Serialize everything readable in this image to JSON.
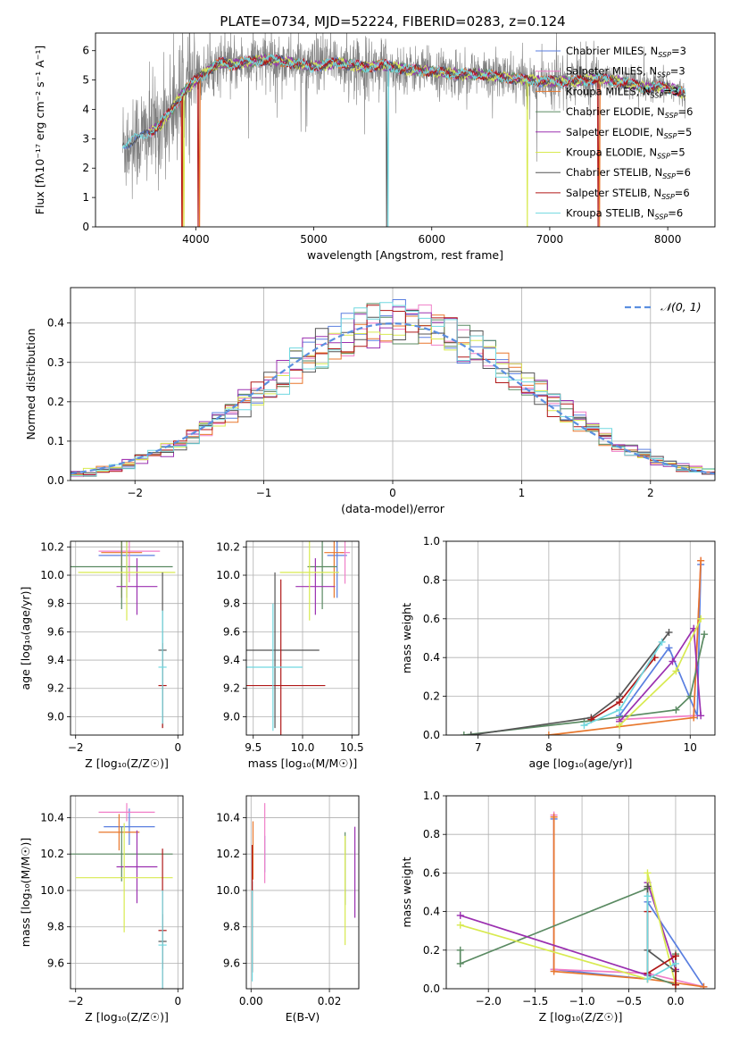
{
  "figure": {
    "title": "PLATE=0734, MJD=52224, FIBERID=0283, z=0.124"
  },
  "colors": {
    "chabrier_miles": "#5a7fe0",
    "salpeter_miles": "#f07fc8",
    "kroupa_miles": "#e8772c",
    "chabrier_elodie": "#5a8a62",
    "salpeter_elodie": "#9b30b0",
    "kroupa_elodie": "#d8ea50",
    "chabrier_stelib": "#555555",
    "salpeter_stelib": "#b01818",
    "kroupa_stelib": "#70d8e0",
    "data": "#808080",
    "normal": "#5b8fe0"
  },
  "models": [
    {
      "key": "chabrier_miles",
      "name": "Chabrier MILES, N",
      "n": "3"
    },
    {
      "key": "salpeter_miles",
      "name": "Salpeter MILES, N",
      "n": "3"
    },
    {
      "key": "kroupa_miles",
      "name": "Kroupa MILES, N",
      "n": "3"
    },
    {
      "key": "chabrier_elodie",
      "name": "Chabrier ELODIE, N",
      "n": "6"
    },
    {
      "key": "salpeter_elodie",
      "name": "Salpeter ELODIE, N",
      "n": "5"
    },
    {
      "key": "kroupa_elodie",
      "name": "Kroupa ELODIE, N",
      "n": "5"
    },
    {
      "key": "chabrier_stelib",
      "name": "Chabrier STELIB, N",
      "n": "6"
    },
    {
      "key": "salpeter_stelib",
      "name": "Salpeter STELIB, N",
      "n": "6"
    },
    {
      "key": "kroupa_stelib",
      "name": "Kroupa STELIB, N",
      "n": "6"
    }
  ],
  "chart_data": [
    {
      "id": "spectrum",
      "type": "line",
      "xlabel": "wavelength [Angstrom, rest frame]",
      "ylabel": "Flux [fλ10⁻¹⁷ erg cm⁻² s⁻¹ A⁻¹]",
      "xlim": [
        3150,
        8400
      ],
      "ylim": [
        0,
        6.6
      ],
      "xticks": [
        4000,
        5000,
        6000,
        7000,
        8000
      ],
      "yticks": [
        0,
        1,
        2,
        3,
        4,
        5,
        6
      ],
      "legend": "right",
      "continuum_x": [
        3380,
        3500,
        3600,
        3700,
        3800,
        3900,
        4000,
        4100,
        4200,
        4300,
        4400,
        4600,
        4800,
        5000,
        5200,
        5400,
        5600,
        5800,
        6000,
        6200,
        6400,
        6600,
        6800,
        7000,
        7200,
        7400,
        7600,
        7800,
        8000,
        8100,
        8150
      ],
      "continuum_y": [
        2.8,
        3.0,
        3.2,
        3.5,
        4.0,
        4.6,
        5.0,
        5.3,
        5.6,
        5.5,
        5.6,
        5.7,
        5.6,
        5.45,
        5.6,
        5.45,
        5.5,
        5.35,
        5.3,
        5.2,
        5.2,
        5.1,
        5.0,
        4.95,
        4.95,
        5.05,
        4.95,
        4.75,
        4.75,
        4.6,
        4.5
      ]
    },
    {
      "id": "residuals",
      "type": "histogram",
      "xlabel": "(data-model)/error",
      "ylabel": "Normed distribution",
      "xlim": [
        -2.5,
        2.5
      ],
      "ylim": [
        0,
        0.49
      ],
      "xticks": [
        -2,
        -1,
        0,
        1,
        2
      ],
      "yticks": [
        0.0,
        0.1,
        0.2,
        0.3,
        0.4
      ],
      "legend": "top-right",
      "normal_label": "𝒩(0, 1)",
      "bin_width": 0.1
    },
    {
      "id": "age_vs_z",
      "type": "scatter",
      "xlabel": "Z [log₁₀(Z/Z☉)]",
      "ylabel": "age  [log₁₀(age/yr)]",
      "xlim": [
        -2.1,
        0.1
      ],
      "ylim": [
        8.87,
        10.24
      ],
      "xticks": [
        -2,
        0
      ],
      "yticks": [
        9.0,
        9.2,
        9.4,
        9.6,
        9.8,
        10.0,
        10.2
      ],
      "points": [
        {
          "m": "chabrier_miles",
          "x": -1.0,
          "y": 10.14,
          "xe": 0.55,
          "ye": 0.3
        },
        {
          "m": "salpeter_miles",
          "x": -0.95,
          "y": 10.17,
          "xe": 0.6,
          "ye": 0.22
        },
        {
          "m": "kroupa_miles",
          "x": -1.1,
          "y": 10.16,
          "xe": 0.4,
          "ye": 0.32
        },
        {
          "m": "chabrier_elodie",
          "x": -1.1,
          "y": 10.06,
          "xe": 1.0,
          "ye": 0.3
        },
        {
          "m": "salpeter_elodie",
          "x": -0.8,
          "y": 9.92,
          "xe": 0.4,
          "ye": 0.2
        },
        {
          "m": "kroupa_elodie",
          "x": -1.0,
          "y": 10.02,
          "xe": 0.95,
          "ye": 0.34
        },
        {
          "m": "chabrier_stelib",
          "x": -0.3,
          "y": 9.47,
          "xe": 0.08,
          "ye": 0.55
        },
        {
          "m": "salpeter_stelib",
          "x": -0.3,
          "y": 9.22,
          "xe": 0.08,
          "ye": 0.3
        },
        {
          "m": "kroupa_stelib",
          "x": -0.3,
          "y": 9.35,
          "xe": 0.08,
          "ye": 0.4
        }
      ]
    },
    {
      "id": "age_vs_mass",
      "type": "scatter",
      "xlabel": "mass [log₁₀(M/M☉)]",
      "ylabel": "",
      "xlim": [
        9.43,
        10.57
      ],
      "ylim": [
        8.87,
        10.24
      ],
      "xticks": [
        9.5,
        10.0,
        10.5
      ],
      "yticks": [
        9.0,
        9.2,
        9.4,
        9.6,
        9.8,
        10.0,
        10.2
      ],
      "points": [
        {
          "m": "chabrier_miles",
          "x": 10.35,
          "y": 10.14,
          "xe": 0.1,
          "ye": 0.3
        },
        {
          "m": "salpeter_miles",
          "x": 10.43,
          "y": 10.16,
          "xe": 0.05,
          "ye": 0.22
        },
        {
          "m": "kroupa_miles",
          "x": 10.32,
          "y": 10.16,
          "xe": 0.1,
          "ye": 0.32
        },
        {
          "m": "chabrier_elodie",
          "x": 10.2,
          "y": 10.06,
          "xe": 0.15,
          "ye": 0.3
        },
        {
          "m": "salpeter_elodie",
          "x": 10.13,
          "y": 9.92,
          "xe": 0.2,
          "ye": 0.2
        },
        {
          "m": "kroupa_elodie",
          "x": 10.07,
          "y": 10.02,
          "xe": 0.3,
          "ye": 0.34
        },
        {
          "m": "chabrier_stelib",
          "x": 9.72,
          "y": 9.47,
          "xe": 0.45,
          "ye": 0.55
        },
        {
          "m": "salpeter_stelib",
          "x": 9.78,
          "y": 9.22,
          "xe": 0.45,
          "ye": 0.75
        },
        {
          "m": "kroupa_stelib",
          "x": 9.7,
          "y": 9.35,
          "xe": 0.3,
          "ye": 0.45
        }
      ]
    },
    {
      "id": "weight_vs_age",
      "type": "line",
      "xlabel": "age  [log₁₀(age/yr)]",
      "ylabel": "mass weight",
      "xlim": [
        6.55,
        10.35
      ],
      "ylim": [
        0,
        1.0
      ],
      "xticks": [
        7,
        8,
        9,
        10
      ],
      "yticks": [
        0.0,
        0.2,
        0.4,
        0.6,
        0.8,
        1.0
      ],
      "series": [
        {
          "m": "chabrier_miles",
          "x": [
            9.0,
            9.7,
            10.1,
            10.15
          ],
          "y": [
            0.1,
            0.45,
            0.1,
            0.88
          ]
        },
        {
          "m": "salpeter_miles",
          "x": [
            9.0,
            10.05,
            10.15
          ],
          "y": [
            0.08,
            0.1,
            0.9
          ]
        },
        {
          "m": "kroupa_miles",
          "x": [
            8.0,
            10.05,
            10.15
          ],
          "y": [
            0.0,
            0.09,
            0.9
          ]
        },
        {
          "m": "chabrier_elodie",
          "x": [
            6.8,
            8.5,
            9.8,
            10.0,
            10.2
          ],
          "y": [
            0.0,
            0.07,
            0.13,
            0.2,
            0.52
          ]
        },
        {
          "m": "salpeter_elodie",
          "x": [
            9.0,
            9.75,
            10.05,
            10.15
          ],
          "y": [
            0.07,
            0.38,
            0.55,
            0.1
          ]
        },
        {
          "m": "kroupa_elodie",
          "x": [
            9.0,
            9.8,
            10.15
          ],
          "y": [
            0.05,
            0.33,
            0.6
          ]
        },
        {
          "m": "chabrier_stelib",
          "x": [
            6.9,
            8.6,
            9.0,
            9.7
          ],
          "y": [
            0.0,
            0.09,
            0.2,
            0.53
          ]
        },
        {
          "m": "salpeter_stelib",
          "x": [
            8.6,
            9.0,
            9.5
          ],
          "y": [
            0.08,
            0.17,
            0.4
          ]
        },
        {
          "m": "kroupa_stelib",
          "x": [
            8.5,
            9.0,
            9.6
          ],
          "y": [
            0.05,
            0.13,
            0.48
          ]
        }
      ]
    },
    {
      "id": "mass_vs_z",
      "type": "scatter",
      "xlabel": "Z [log₁₀(Z/Z☉)]",
      "ylabel": "mass [log₁₀(M/M☉)]",
      "xlim": [
        -2.1,
        0.1
      ],
      "ylim": [
        9.46,
        10.52
      ],
      "xticks": [
        -2,
        0
      ],
      "yticks": [
        9.6,
        9.8,
        10.0,
        10.2,
        10.4
      ],
      "points": [
        {
          "m": "chabrier_miles",
          "x": -0.95,
          "y": 10.35,
          "xe": 0.5,
          "ye": 0.1
        },
        {
          "m": "salpeter_miles",
          "x": -1.0,
          "y": 10.43,
          "xe": 0.55,
          "ye": 0.05
        },
        {
          "m": "kroupa_miles",
          "x": -1.15,
          "y": 10.32,
          "xe": 0.4,
          "ye": 0.1
        },
        {
          "m": "chabrier_elodie",
          "x": -1.1,
          "y": 10.2,
          "xe": 1.0,
          "ye": 0.15
        },
        {
          "m": "salpeter_elodie",
          "x": -0.8,
          "y": 10.13,
          "xe": 0.4,
          "ye": 0.2
        },
        {
          "m": "kroupa_elodie",
          "x": -1.05,
          "y": 10.07,
          "xe": 0.95,
          "ye": 0.3
        },
        {
          "m": "chabrier_stelib",
          "x": -0.3,
          "y": 9.72,
          "xe": 0.08,
          "ye": 0.15
        },
        {
          "m": "salpeter_stelib",
          "x": -0.3,
          "y": 9.78,
          "xe": 0.08,
          "ye": 0.45
        },
        {
          "m": "kroupa_stelib",
          "x": -0.3,
          "y": 9.7,
          "xe": 0.08,
          "ye": 0.3
        }
      ]
    },
    {
      "id": "mass_vs_ebv",
      "type": "scatter",
      "xlabel": "E(B-V)",
      "ylabel": "",
      "xlim": [
        -0.0012,
        0.0275
      ],
      "ylim": [
        9.46,
        10.52
      ],
      "xticks": [
        0.0,
        0.02
      ],
      "yticks": [
        9.6,
        9.8,
        10.0,
        10.2,
        10.4
      ],
      "points": [
        {
          "m": "chabrier_miles",
          "x": 0.0035,
          "y": 10.2,
          "xe": 0.0,
          "ye": 0.1
        },
        {
          "m": "salpeter_miles",
          "x": 0.0035,
          "y": 10.26,
          "xe": 0.0,
          "ye": 0.22
        },
        {
          "m": "kroupa_miles",
          "x": 0.0005,
          "y": 10.22,
          "xe": 0.0,
          "ye": 0.16
        },
        {
          "m": "chabrier_elodie",
          "x": 0.024,
          "y": 10.12,
          "xe": 0.0,
          "ye": 0.2
        },
        {
          "m": "salpeter_elodie",
          "x": 0.0265,
          "y": 10.1,
          "xe": 0.0,
          "ye": 0.25
        },
        {
          "m": "kroupa_elodie",
          "x": 0.024,
          "y": 10.0,
          "xe": 0.0,
          "ye": 0.3
        },
        {
          "m": "chabrier_stelib",
          "x": 0.0003,
          "y": 9.8,
          "xe": 0.0,
          "ye": 0.25
        },
        {
          "m": "salpeter_stelib",
          "x": 0.0003,
          "y": 9.9,
          "xe": 0.0,
          "ye": 0.35
        },
        {
          "m": "kroupa_stelib",
          "x": 0.0003,
          "y": 9.75,
          "xe": 0.0,
          "ye": 0.25
        }
      ]
    },
    {
      "id": "weight_vs_z",
      "type": "line",
      "xlabel": "Z [log₁₀(Z/Z☉)]",
      "ylabel": "mass weight",
      "xlim": [
        -2.45,
        0.42
      ],
      "ylim": [
        0,
        1.0
      ],
      "xticks": [
        -2.0,
        -1.5,
        -1.0,
        -0.5,
        0.0
      ],
      "yticks": [
        0.0,
        0.2,
        0.4,
        0.6,
        0.8,
        1.0
      ],
      "series": [
        {
          "m": "chabrier_miles",
          "x": [
            -1.3,
            -1.3,
            -0.3,
            -0.3,
            0.3
          ],
          "y": [
            0.88,
            0.1,
            0.05,
            0.45,
            0.01
          ]
        },
        {
          "m": "salpeter_miles",
          "x": [
            -1.3,
            -1.3,
            -0.3,
            0.3
          ],
          "y": [
            0.9,
            0.1,
            0.08,
            0.01
          ]
        },
        {
          "m": "kroupa_miles",
          "x": [
            -1.3,
            -1.3,
            -0.3,
            0.3
          ],
          "y": [
            0.89,
            0.09,
            0.05,
            0.01
          ]
        },
        {
          "m": "chabrier_elodie",
          "x": [
            -2.3,
            -2.3,
            -0.3,
            -0.3,
            0.0,
            0.0
          ],
          "y": [
            0.2,
            0.13,
            0.52,
            0.07,
            0.02,
            0.18
          ]
        },
        {
          "m": "salpeter_elodie",
          "x": [
            -2.3,
            -0.3,
            -0.3,
            0.0
          ],
          "y": [
            0.38,
            0.07,
            0.55,
            0.1
          ]
        },
        {
          "m": "kroupa_elodie",
          "x": [
            -2.3,
            -0.3,
            -0.3,
            0.0
          ],
          "y": [
            0.33,
            0.05,
            0.6,
            0.02
          ]
        },
        {
          "m": "chabrier_stelib",
          "x": [
            -0.3,
            -0.3,
            0.0,
            0.0
          ],
          "y": [
            0.53,
            0.2,
            0.09,
            0.17
          ]
        },
        {
          "m": "salpeter_stelib",
          "x": [
            -0.3,
            -0.3,
            0.0,
            0.0
          ],
          "y": [
            0.4,
            0.08,
            0.17,
            0.02
          ]
        },
        {
          "m": "kroupa_stelib",
          "x": [
            -0.3,
            -0.3,
            0.0
          ],
          "y": [
            0.48,
            0.05,
            0.13
          ]
        }
      ]
    }
  ]
}
